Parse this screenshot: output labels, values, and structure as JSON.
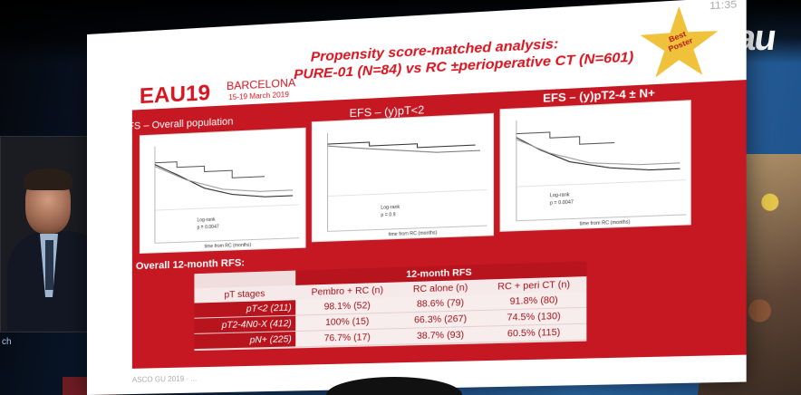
{
  "scene": {
    "left_caption": "ch",
    "eau_logo": "eau",
    "clock": "11:35"
  },
  "slide": {
    "logo": "EAU19",
    "city": "BARCELONA",
    "date": "15-19 March 2019",
    "title_line1": "Propensity score-matched analysis:",
    "title_line2": "PURE-01 (N=84) vs RC ±perioperative CT (N=601)",
    "badge_line1": "Best",
    "badge_line2": "Poster"
  },
  "panels": [
    {
      "title": "EFS – Overall population",
      "legend": "Log-rank",
      "p": "p = 0.0047"
    },
    {
      "title": "EFS – (y)pT<2",
      "legend": "Log-rank",
      "p": "p = 0.9"
    },
    {
      "title": "EFS – (y)pT2-4 ± N+",
      "legend": "Log-rank",
      "p": "p = 0.0047"
    }
  ],
  "x_label": "time from RC (months)",
  "overall_label": "Overall 12-month RFS:",
  "table": {
    "group_header": "12-month RFS",
    "columns": [
      "pT stages",
      "Pembro + RC (n)",
      "RC alone (n)",
      "RC + peri CT (n)"
    ],
    "rows": [
      {
        "stage": "pT<2 (211)",
        "pembro": "98.1% (52)",
        "rc_alone": "88.6% (79)",
        "rc_ct": "91.8% (80)"
      },
      {
        "stage": "pT2-4N0-X (412)",
        "pembro": "100% (15)",
        "rc_alone": "66.3% (267)",
        "rc_ct": "74.5% (130)"
      },
      {
        "stage": "pN+ (225)",
        "pembro": "76.7% (17)",
        "rc_alone": "38.7% (93)",
        "rc_ct": "60.5% (115)"
      }
    ]
  },
  "footer": "ASCO GU 2019 · ..."
}
